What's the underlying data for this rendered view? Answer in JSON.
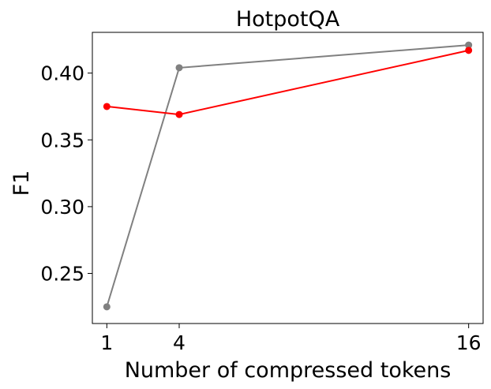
{
  "chart_data": {
    "type": "line",
    "title": "HotpotQA",
    "xlabel": "Number of compressed tokens",
    "ylabel": "F1",
    "x": [
      1,
      4,
      16
    ],
    "xticks": [
      "1",
      "4",
      "16"
    ],
    "yticks": [
      "0.25",
      "0.30",
      "0.35",
      "0.40"
    ],
    "ytick_values": [
      0.25,
      0.3,
      0.35,
      0.4
    ],
    "xlim": [
      0.4,
      16.6
    ],
    "ylim": [
      0.2125,
      0.4305
    ],
    "grid": false,
    "series": [
      {
        "color": "#ff0000",
        "values": [
          0.375,
          0.369,
          0.417
        ]
      },
      {
        "color": "#808080",
        "values": [
          0.225,
          0.404,
          0.421
        ]
      }
    ]
  }
}
